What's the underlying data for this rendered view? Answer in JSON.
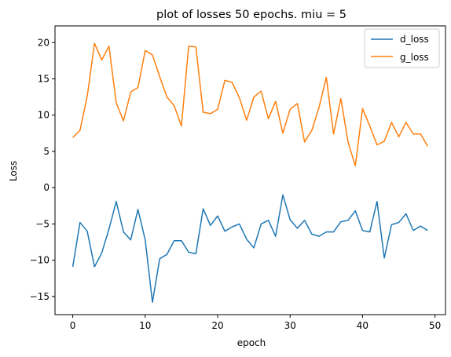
{
  "chart_data": {
    "type": "line",
    "title": "plot of losses 50 epochs. miu = 5",
    "xlabel": "epoch",
    "ylabel": "Loss",
    "xlim": [
      -2.45,
      51.45
    ],
    "ylim": [
      -17.5,
      22.3
    ],
    "xticks": [
      0,
      10,
      20,
      30,
      40,
      50
    ],
    "yticks": [
      -15,
      -10,
      -5,
      0,
      5,
      10,
      15,
      20
    ],
    "grid": false,
    "legend_position": "top-right",
    "x": [
      0,
      1,
      2,
      3,
      4,
      5,
      6,
      7,
      8,
      9,
      10,
      11,
      12,
      13,
      14,
      15,
      16,
      17,
      18,
      19,
      20,
      21,
      22,
      23,
      24,
      25,
      26,
      27,
      28,
      29,
      30,
      31,
      32,
      33,
      34,
      35,
      36,
      37,
      38,
      39,
      40,
      41,
      42,
      43,
      44,
      45,
      46,
      47,
      48,
      49
    ],
    "series": [
      {
        "name": "d_loss",
        "color": "#1f77b4",
        "values": [
          -10.9,
          -4.8,
          -6.0,
          -10.9,
          -9.0,
          -5.7,
          -1.9,
          -6.1,
          -7.2,
          -3.0,
          -7.2,
          -15.8,
          -9.8,
          -9.2,
          -7.3,
          -7.3,
          -8.9,
          -9.1,
          -2.9,
          -5.2,
          -3.9,
          -6.0,
          -5.4,
          -5.0,
          -7.1,
          -8.3,
          -5.0,
          -4.5,
          -6.7,
          -1.0,
          -4.4,
          -5.6,
          -4.5,
          -6.4,
          -6.7,
          -6.1,
          -6.1,
          -4.7,
          -4.5,
          -3.2,
          -5.9,
          -6.1,
          -1.9,
          -9.7,
          -5.1,
          -4.8,
          -3.6,
          -5.9,
          -5.3,
          -5.9
        ]
      },
      {
        "name": "g_loss",
        "color": "#ff7f0e",
        "values": [
          6.9,
          7.9,
          12.6,
          19.9,
          17.6,
          19.5,
          11.7,
          9.2,
          13.2,
          13.8,
          18.9,
          18.3,
          15.3,
          12.5,
          11.3,
          8.5,
          19.5,
          19.4,
          10.4,
          10.2,
          10.8,
          14.8,
          14.5,
          12.4,
          9.3,
          12.5,
          13.3,
          9.5,
          11.9,
          7.5,
          10.8,
          11.6,
          6.3,
          7.9,
          11.1,
          15.2,
          7.4,
          12.3,
          6.3,
          3.0,
          10.9,
          8.5,
          5.9,
          6.4,
          9.0,
          7.0,
          9.0,
          7.4,
          7.4,
          5.7
        ]
      }
    ]
  }
}
